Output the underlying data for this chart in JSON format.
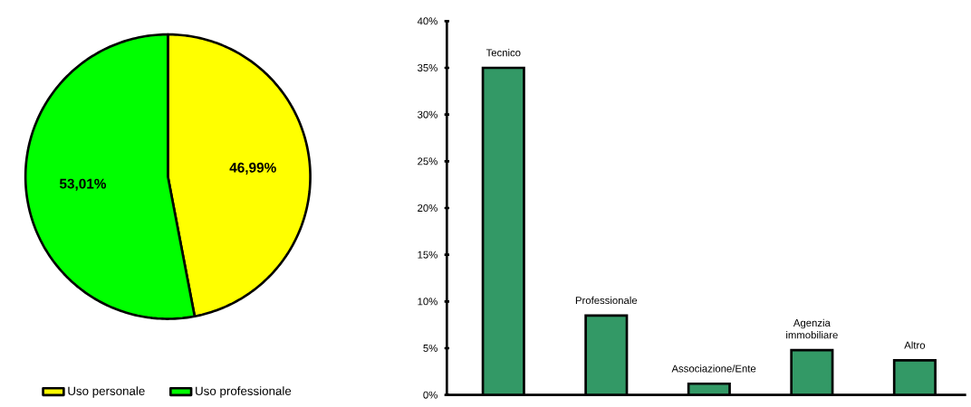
{
  "chart_data": [
    {
      "type": "pie",
      "categories": [
        "Uso personale",
        "Uso professionale"
      ],
      "values": [
        46.99,
        53.01
      ],
      "colors": [
        "#ffff00",
        "#00ff00"
      ],
      "value_labels": [
        "46,99%",
        "53,01%"
      ],
      "legend": "bottom"
    },
    {
      "type": "bar",
      "categories": [
        "Tecnico",
        "Professionale",
        "Associazione/Ente",
        "Agenzia immobiliare",
        "Altro"
      ],
      "values": [
        35,
        8.5,
        1.2,
        4.8,
        3.7
      ],
      "color": "#339966",
      "ylim": [
        0,
        40
      ],
      "yticks": [
        {
          "value": 0,
          "label": "0%"
        },
        {
          "value": 5,
          "label": "5%"
        },
        {
          "value": 10,
          "label": "10%"
        },
        {
          "value": 15,
          "label": "15%"
        },
        {
          "value": 20,
          "label": "20%"
        },
        {
          "value": 25,
          "label": "25%"
        },
        {
          "value": 30,
          "label": "30%"
        },
        {
          "value": 35,
          "label": "35%"
        },
        {
          "value": 40,
          "label": "40%"
        }
      ],
      "tick_labels": "y"
    }
  ]
}
